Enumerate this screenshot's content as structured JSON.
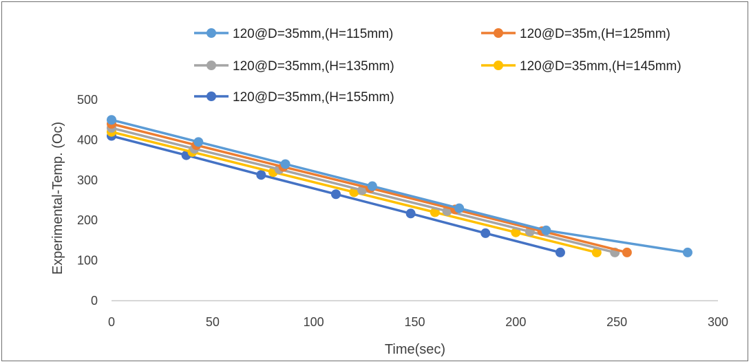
{
  "chart_data": {
    "type": "line",
    "title": "",
    "xlabel": "Time(sec)",
    "ylabel": "Experimental-Temp. (Oc)",
    "xlim": [
      0,
      300
    ],
    "ylim": [
      0,
      500
    ],
    "xticks": [
      0,
      50,
      100,
      150,
      200,
      250,
      300
    ],
    "yticks": [
      0,
      100,
      200,
      300,
      400,
      500
    ],
    "grid": false,
    "legend_position": "top",
    "series": [
      {
        "name": "120@D=35mm,(H=115mm)",
        "color": "#5b9bd5",
        "x": [
          0,
          43,
          86,
          129,
          172,
          215,
          285
        ],
        "y": [
          450,
          395,
          340,
          285,
          230,
          175,
          120
        ]
      },
      {
        "name": "120@D=35m,(H=125mm)",
        "color": "#ed7d31",
        "x": [
          0,
          42,
          85,
          128,
          170,
          213,
          255
        ],
        "y": [
          440,
          387,
          333,
          280,
          227,
          173,
          120
        ]
      },
      {
        "name": "120@D=35mm,(H=135mm)",
        "color": "#a5a5a5",
        "x": [
          0,
          41,
          83,
          124,
          166,
          207,
          249
        ],
        "y": [
          430,
          378,
          327,
          275,
          223,
          172,
          120
        ]
      },
      {
        "name": "120@D=35mm,(H=145mm)",
        "color": "#ffc000",
        "x": [
          0,
          40,
          80,
          120,
          160,
          200,
          240
        ],
        "y": [
          420,
          370,
          320,
          270,
          220,
          170,
          120
        ]
      },
      {
        "name": "120@D=35mm,(H=155mm)",
        "color": "#4472c4",
        "x": [
          0,
          37,
          74,
          111,
          148,
          185,
          222
        ],
        "y": [
          410,
          362,
          313,
          265,
          217,
          168,
          120
        ]
      }
    ]
  }
}
